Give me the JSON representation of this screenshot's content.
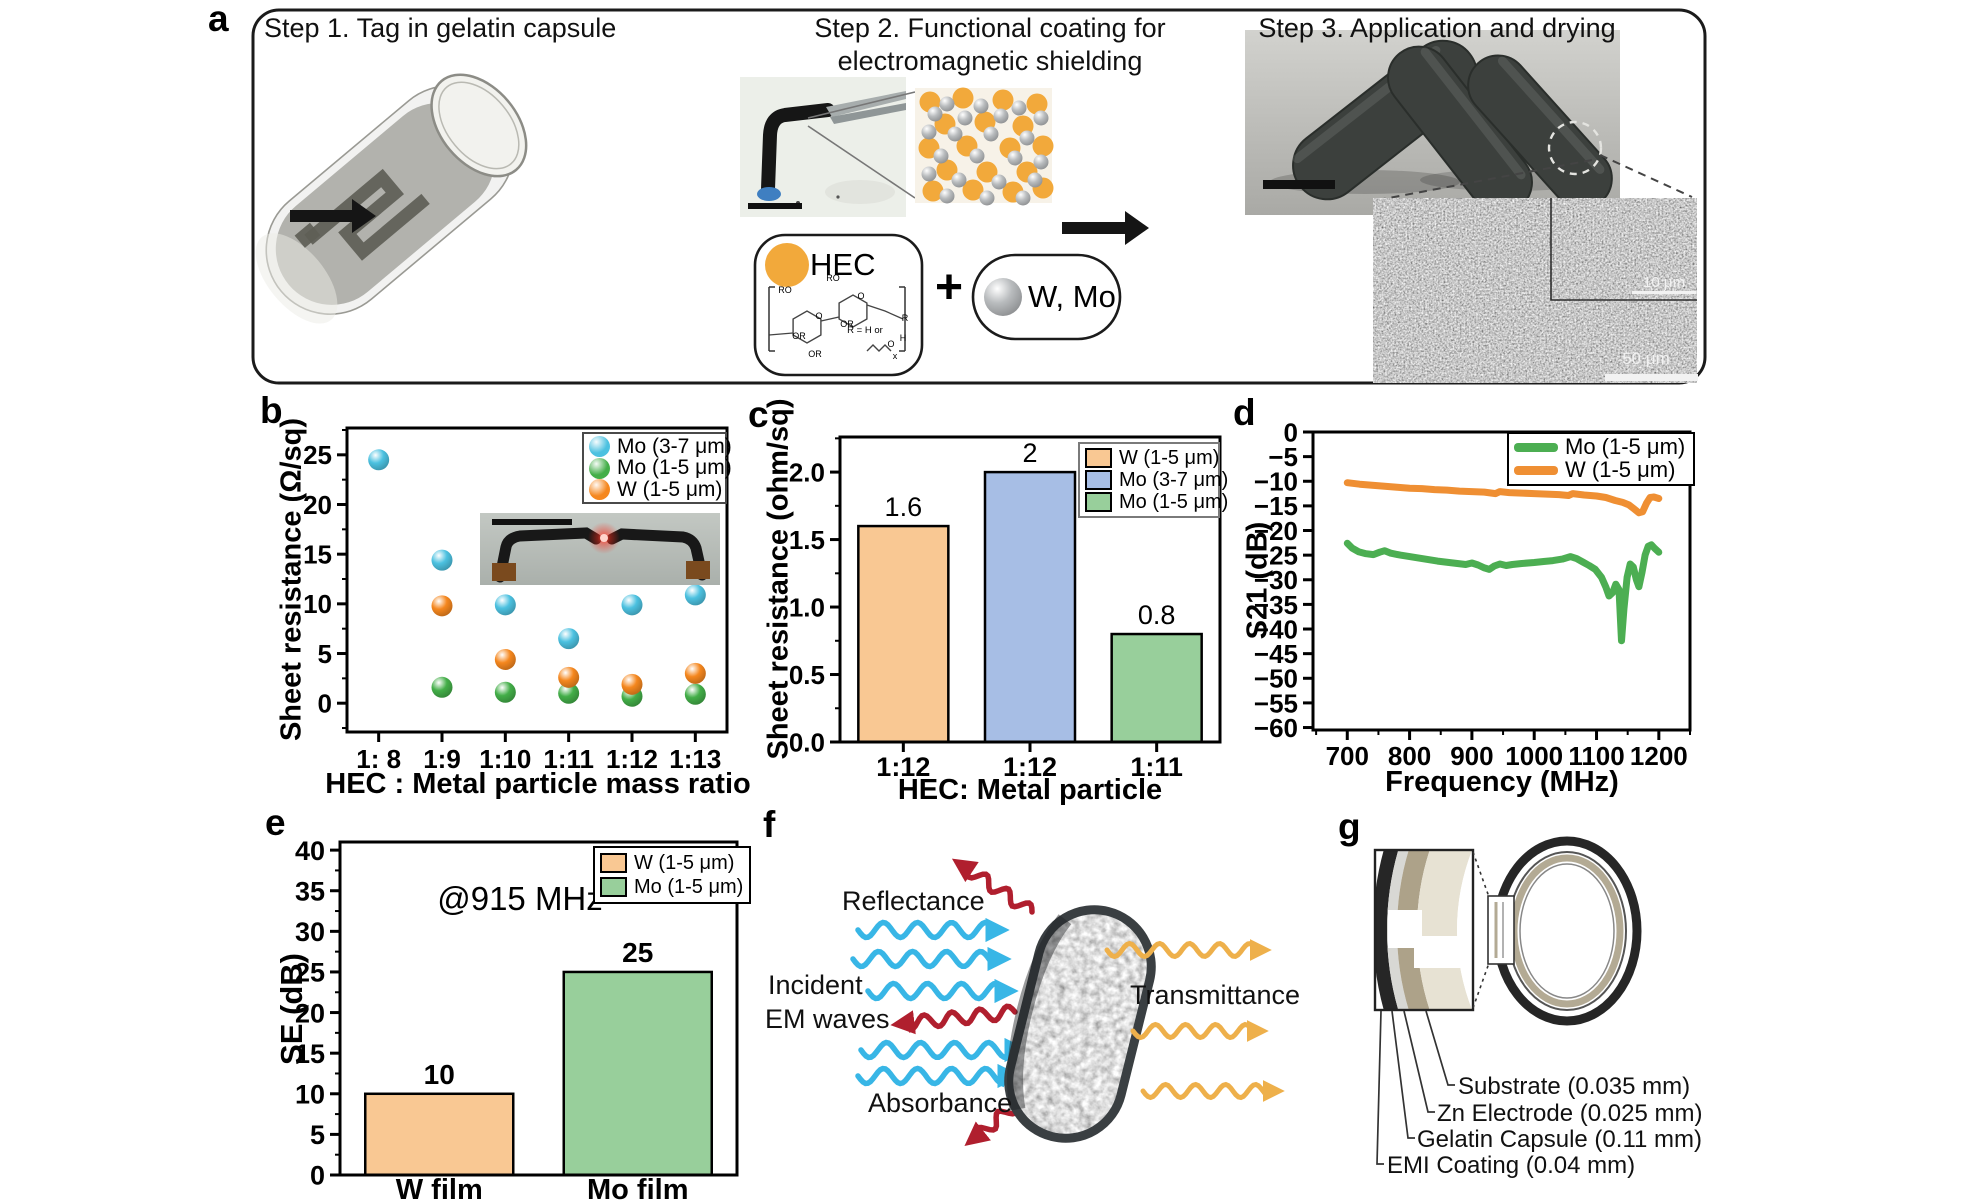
{
  "panels": {
    "a": {
      "label": "a",
      "step1": "Step 1. Tag in gelatin capsule",
      "step2_l1": "Step 2. Functional coating for",
      "step2_l2": "electromagnetic shielding",
      "step3": "Step 3. Application and drying",
      "hec": "HEC",
      "plus": "+",
      "metals": "W, Mo",
      "scale_10": "10 μm",
      "scale_50": "50 μm",
      "chem_labels": [
        "RO",
        "RO",
        "O",
        "O",
        "OR",
        "OR",
        "OR",
        "R",
        "R = H or",
        "O",
        "H",
        "x"
      ]
    },
    "b": {
      "label": "b"
    },
    "c": {
      "label": "c"
    },
    "d": {
      "label": "d"
    },
    "e": {
      "label": "e"
    },
    "f": {
      "label": "f",
      "reflectance": "Reflectance",
      "incident_l1": "Incident",
      "incident_l2": "EM waves",
      "absorbance": "Absorbance",
      "transmittance": "Transmittance",
      "colors": {
        "incident": "#38b6e6",
        "reflect_absorb": "#b01f2e",
        "transmit": "#eeb04b"
      }
    },
    "g": {
      "label": "g",
      "layers": [
        {
          "name": "Substrate (0.035 mm)",
          "color": "#e7e2d3"
        },
        {
          "name": "Zn Electrode (0.025 mm)",
          "color": "#ada289"
        },
        {
          "name": "Gelatin Capsule (0.11 mm)",
          "color": "#d8d8d4"
        },
        {
          "name": "EMI Coating (0.04 mm)",
          "color": "#262626"
        }
      ]
    }
  },
  "chart_data": [
    {
      "id": "b",
      "type": "scatter",
      "title": "",
      "xlabel": "HEC : Metal particle mass ratio",
      "ylabel": "Sheet resistance (Ω/sq)",
      "categories": [
        "1: 8",
        "1:9",
        "1:10",
        "1:11",
        "1:12",
        "1:13"
      ],
      "yticks": [
        0,
        5,
        10,
        15,
        20,
        25
      ],
      "ylim": [
        -2.9,
        27.7
      ],
      "grid": false,
      "legend_position": "top-right",
      "series": [
        {
          "name": "Mo (3-7 μm)",
          "color": "#4cc1e0",
          "values": [
            24.5,
            14.4,
            9.9,
            6.5,
            9.9,
            10.9
          ]
        },
        {
          "name": "Mo (1-5 μm)",
          "color": "#43ae48",
          "values": [
            null,
            1.6,
            1.1,
            1.0,
            0.7,
            0.9
          ]
        },
        {
          "name": "W (1-5 μm)",
          "color": "#f5871e",
          "values": [
            null,
            9.8,
            4.4,
            2.6,
            1.9,
            3.0
          ]
        }
      ]
    },
    {
      "id": "c",
      "type": "bar",
      "title": "",
      "xlabel": "HEC: Metal particle",
      "ylabel": "Sheet resistance (ohm/sq)",
      "categories": [
        "1:12",
        "1:12",
        "1:11"
      ],
      "yticks": [
        "0.0",
        "0.5",
        "1.0",
        "1.5",
        "2.0"
      ],
      "ylim": [
        0,
        2.26
      ],
      "grid": false,
      "legend_position": "top-right",
      "bars": [
        {
          "legend": "W (1-5 μm)",
          "label": "1.6",
          "value": 1.6,
          "color": "#f9c893"
        },
        {
          "legend": "Mo (3-7 μm)",
          "label": "2",
          "value": 2.0,
          "color": "#a7bee5"
        },
        {
          "legend": "Mo (1-5 μm)",
          "label": "0.8",
          "value": 0.8,
          "color": "#98cf9b"
        }
      ]
    },
    {
      "id": "d",
      "type": "line",
      "title": "",
      "xlabel": "Frequency (MHz)",
      "ylabel": "S21 (dB)",
      "xticks": [
        700,
        800,
        900,
        1000,
        1100,
        1200
      ],
      "xlim": [
        645,
        1250
      ],
      "yticks": [
        0,
        -5,
        -10,
        -15,
        -20,
        -25,
        -30,
        -35,
        -40,
        -45,
        -50,
        -55,
        -60
      ],
      "ylim": [
        -60.5,
        0
      ],
      "grid": false,
      "legend_position": "top-right",
      "series": [
        {
          "name": "Mo (1-5 μm)",
          "color": "#4cae52",
          "points": [
            [
              700,
              -22.6
            ],
            [
              708,
              -23.6
            ],
            [
              718,
              -24.3
            ],
            [
              730,
              -24.7
            ],
            [
              742,
              -24.9
            ],
            [
              752,
              -24.4
            ],
            [
              760,
              -24.1
            ],
            [
              770,
              -24.6
            ],
            [
              785,
              -25.0
            ],
            [
              800,
              -25.3
            ],
            [
              820,
              -25.7
            ],
            [
              845,
              -26.2
            ],
            [
              870,
              -26.6
            ],
            [
              890,
              -26.9
            ],
            [
              900,
              -26.6
            ],
            [
              910,
              -27.0
            ],
            [
              920,
              -27.6
            ],
            [
              928,
              -27.9
            ],
            [
              936,
              -27.2
            ],
            [
              945,
              -26.8
            ],
            [
              955,
              -27.1
            ],
            [
              965,
              -26.9
            ],
            [
              980,
              -26.7
            ],
            [
              1000,
              -26.5
            ],
            [
              1015,
              -26.3
            ],
            [
              1030,
              -26.1
            ],
            [
              1045,
              -25.8
            ],
            [
              1058,
              -25.3
            ],
            [
              1068,
              -25.7
            ],
            [
              1078,
              -26.4
            ],
            [
              1088,
              -27.1
            ],
            [
              1098,
              -27.9
            ],
            [
              1108,
              -29.5
            ],
            [
              1115,
              -31.5
            ],
            [
              1120,
              -33.3
            ],
            [
              1126,
              -32.6
            ],
            [
              1131,
              -30.9
            ],
            [
              1136,
              -32.0
            ],
            [
              1140,
              -42.4
            ],
            [
              1144,
              -36.0
            ],
            [
              1149,
              -29.5
            ],
            [
              1154,
              -26.8
            ],
            [
              1159,
              -27.4
            ],
            [
              1164,
              -30.0
            ],
            [
              1168,
              -31.4
            ],
            [
              1173,
              -28.5
            ],
            [
              1178,
              -25.0
            ],
            [
              1183,
              -23.2
            ],
            [
              1188,
              -22.9
            ],
            [
              1193,
              -23.6
            ],
            [
              1200,
              -24.4
            ]
          ]
        },
        {
          "name": "W (1-5 μm)",
          "color": "#ef8f33",
          "points": [
            [
              700,
              -10.3
            ],
            [
              720,
              -10.6
            ],
            [
              740,
              -10.8
            ],
            [
              760,
              -11.0
            ],
            [
              780,
              -11.2
            ],
            [
              800,
              -11.4
            ],
            [
              820,
              -11.5
            ],
            [
              840,
              -11.7
            ],
            [
              860,
              -11.8
            ],
            [
              880,
              -12.0
            ],
            [
              900,
              -12.1
            ],
            [
              920,
              -12.2
            ],
            [
              938,
              -12.5
            ],
            [
              945,
              -12.1
            ],
            [
              960,
              -12.3
            ],
            [
              980,
              -12.4
            ],
            [
              1000,
              -12.5
            ],
            [
              1020,
              -12.6
            ],
            [
              1040,
              -12.7
            ],
            [
              1055,
              -12.9
            ],
            [
              1062,
              -12.5
            ],
            [
              1080,
              -12.8
            ],
            [
              1100,
              -13.0
            ],
            [
              1115,
              -13.3
            ],
            [
              1130,
              -13.9
            ],
            [
              1142,
              -14.3
            ],
            [
              1152,
              -14.8
            ],
            [
              1160,
              -15.6
            ],
            [
              1168,
              -16.4
            ],
            [
              1174,
              -16.2
            ],
            [
              1180,
              -14.5
            ],
            [
              1186,
              -13.3
            ],
            [
              1192,
              -13.2
            ],
            [
              1200,
              -13.5
            ]
          ]
        }
      ]
    },
    {
      "id": "e",
      "type": "bar",
      "title": "",
      "annotation": "@915 MHz",
      "xlabel": "",
      "ylabel": "SE (dB)",
      "categories": [
        "W film",
        "Mo film"
      ],
      "yticks": [
        0,
        5,
        10,
        15,
        20,
        25,
        30,
        35,
        40
      ],
      "ylim": [
        0,
        41
      ],
      "grid": false,
      "legend_position": "top-right",
      "bars": [
        {
          "legend": "W (1-5 μm)",
          "label": "10",
          "value": 10,
          "color": "#f9c893"
        },
        {
          "legend": "Mo (1-5 μm)",
          "label": "25",
          "value": 25,
          "color": "#98cf9b"
        }
      ]
    }
  ]
}
